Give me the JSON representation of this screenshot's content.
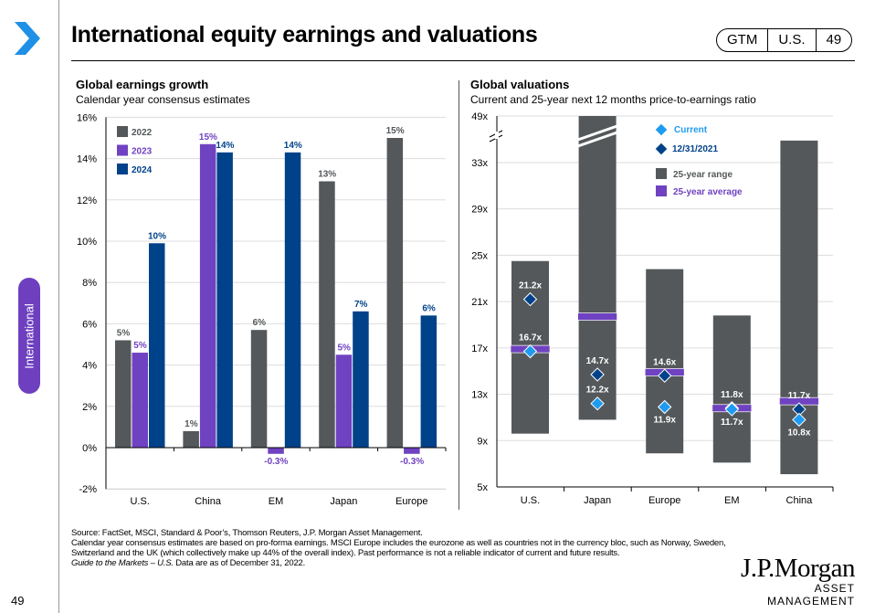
{
  "header": {
    "title": "International equity earnings and valuations",
    "pill": [
      "GTM",
      "U.S.",
      "49"
    ]
  },
  "sidebar": {
    "section": "International",
    "page_number": "49"
  },
  "colors": {
    "chevron": "#1e90e6",
    "c2022": "#54585a",
    "c2023": "#6f42c1",
    "c2024": "#00428a",
    "range": "#54585a",
    "average": "#6f42c1",
    "current": "#1e9bf0",
    "prior": "#00428a"
  },
  "chart_data": [
    {
      "type": "bar",
      "title": "Global earnings growth",
      "subtitle": "Calendar year consensus estimates",
      "categories": [
        "U.S.",
        "China",
        "EM",
        "Japan",
        "Europe"
      ],
      "yticks": [
        "16%",
        "14%",
        "12%",
        "10%",
        "8%",
        "6%",
        "4%",
        "2%",
        "0%",
        "-2%"
      ],
      "ylim": [
        -2,
        16
      ],
      "legend": "top-left",
      "series": [
        {
          "name": "2022",
          "values": [
            5.2,
            0.8,
            5.7,
            12.9,
            15.0
          ],
          "labels": [
            "5%",
            "1%",
            "6%",
            "13%",
            "15%"
          ]
        },
        {
          "name": "2023",
          "values": [
            4.6,
            14.7,
            -0.3,
            4.5,
            -0.3
          ],
          "labels": [
            "5%",
            "15%",
            "-0.3%",
            "5%",
            "-0.3%"
          ]
        },
        {
          "name": "2024",
          "values": [
            9.9,
            14.3,
            14.3,
            6.6,
            6.4
          ],
          "labels": [
            "10%",
            "14%",
            "14%",
            "7%",
            "6%"
          ]
        }
      ]
    },
    {
      "type": "range",
      "title": "Global valuations",
      "subtitle": "Current and 25-year next 12 months price-to-earnings ratio",
      "categories": [
        "U.S.",
        "Japan",
        "Europe",
        "EM",
        "China"
      ],
      "yticks": [
        "5x",
        "9x",
        "13x",
        "17x",
        "21x",
        "25x",
        "29x",
        "33x",
        "49x"
      ],
      "ylim": [
        5,
        49
      ],
      "axis_break": true,
      "legend": "top-right",
      "legend_items": [
        "Current",
        "12/31/2021",
        "25-year range",
        "25-year average"
      ],
      "range_min": [
        9.6,
        10.8,
        7.9,
        7.1,
        6.1
      ],
      "range_max": [
        24.5,
        49,
        23.8,
        19.8,
        34.9
      ],
      "average": [
        16.9,
        19.7,
        14.9,
        11.8,
        12.4
      ],
      "current": [
        16.7,
        12.2,
        11.9,
        11.7,
        10.8
      ],
      "current_labels": [
        "16.7x",
        "12.2x",
        "11.9x",
        "11.7x",
        "10.8x"
      ],
      "prior": [
        21.2,
        14.7,
        14.6,
        11.8,
        11.7
      ],
      "prior_labels": [
        "21.2x",
        "14.7x",
        "14.6x",
        "11.8x",
        "11.7x"
      ]
    }
  ],
  "footer": {
    "source": "Source: FactSet, MSCI, Standard & Poor’s, Thomson Reuters, J.P. Morgan Asset Management.",
    "note": "Calendar year consensus estimates are based on pro-forma earnings. MSCI Europe includes the eurozone as well as countries not in the currency bloc, such as Norway, Sweden, Switzerland and the UK (which collectively make up 44% of the overall index). Past performance is not a reliable indicator of current and future results.",
    "guide": "Guide to the Markets – U.S.",
    "date": " Data are as of December 31, 2022."
  },
  "logo": {
    "name": "J.P.Morgan",
    "sub": "ASSET MANAGEMENT"
  }
}
